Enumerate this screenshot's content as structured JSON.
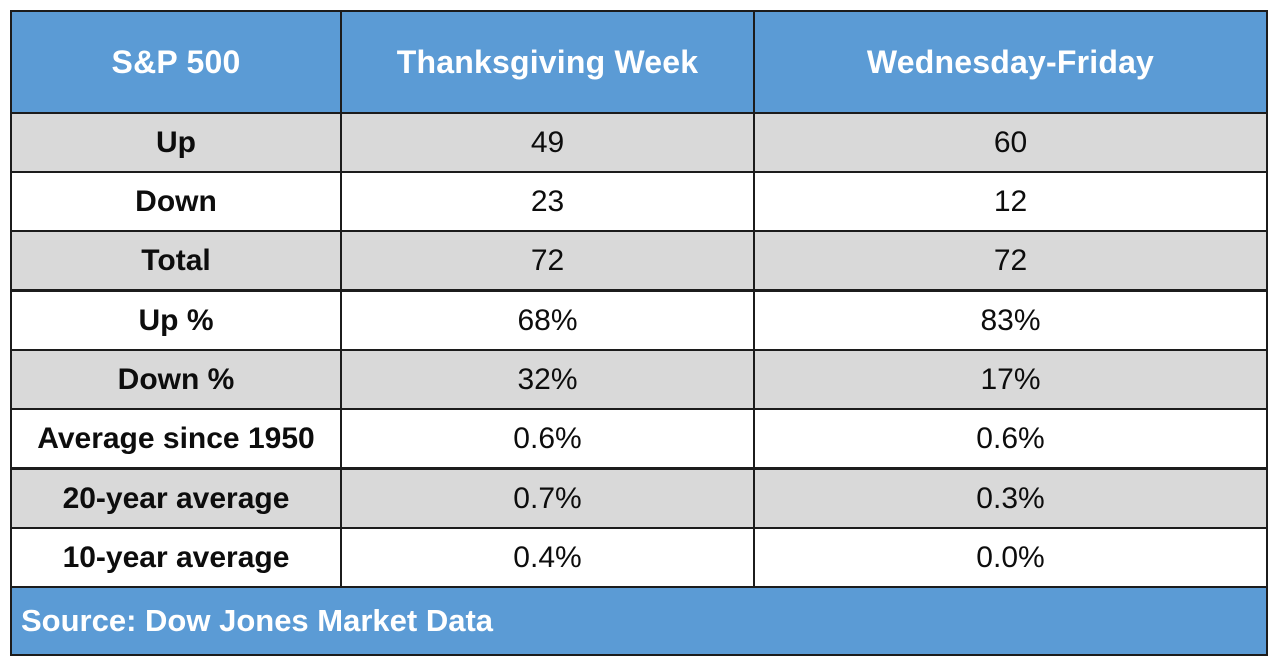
{
  "chart_data": {
    "type": "table",
    "columns": [
      "S&P 500",
      "Thanksgiving Week",
      "Wednesday-Friday"
    ],
    "rows": [
      {
        "label": "Up",
        "values": [
          "49",
          "60"
        ]
      },
      {
        "label": "Down",
        "values": [
          "23",
          "12"
        ]
      },
      {
        "label": "Total",
        "values": [
          "72",
          "72"
        ]
      },
      {
        "label": "Up %",
        "values": [
          "68%",
          "83%"
        ]
      },
      {
        "label": "Down %",
        "values": [
          "32%",
          "17%"
        ]
      },
      {
        "label": "Average since 1950",
        "values": [
          "0.6%",
          "0.6%"
        ]
      },
      {
        "label": "20-year average",
        "values": [
          "0.7%",
          "0.3%"
        ]
      },
      {
        "label": "10-year average",
        "values": [
          "0.4%",
          "0.0%"
        ]
      }
    ],
    "source": "Source: Dow Jones Market Data",
    "layout": {
      "striping": "first data row shaded, alternating",
      "thick_separators_above": [
        "Up %",
        "20-year average"
      ]
    }
  },
  "colors": {
    "header_bg": "#5b9bd5",
    "header_text": "#ffffff",
    "row_shaded_bg": "#d9d9d9",
    "row_plain_bg": "#ffffff",
    "body_text": "#0d0d0d",
    "border": "#1c1c1c",
    "source_bg": "#5b9bd5",
    "source_text": "#ffffff"
  }
}
